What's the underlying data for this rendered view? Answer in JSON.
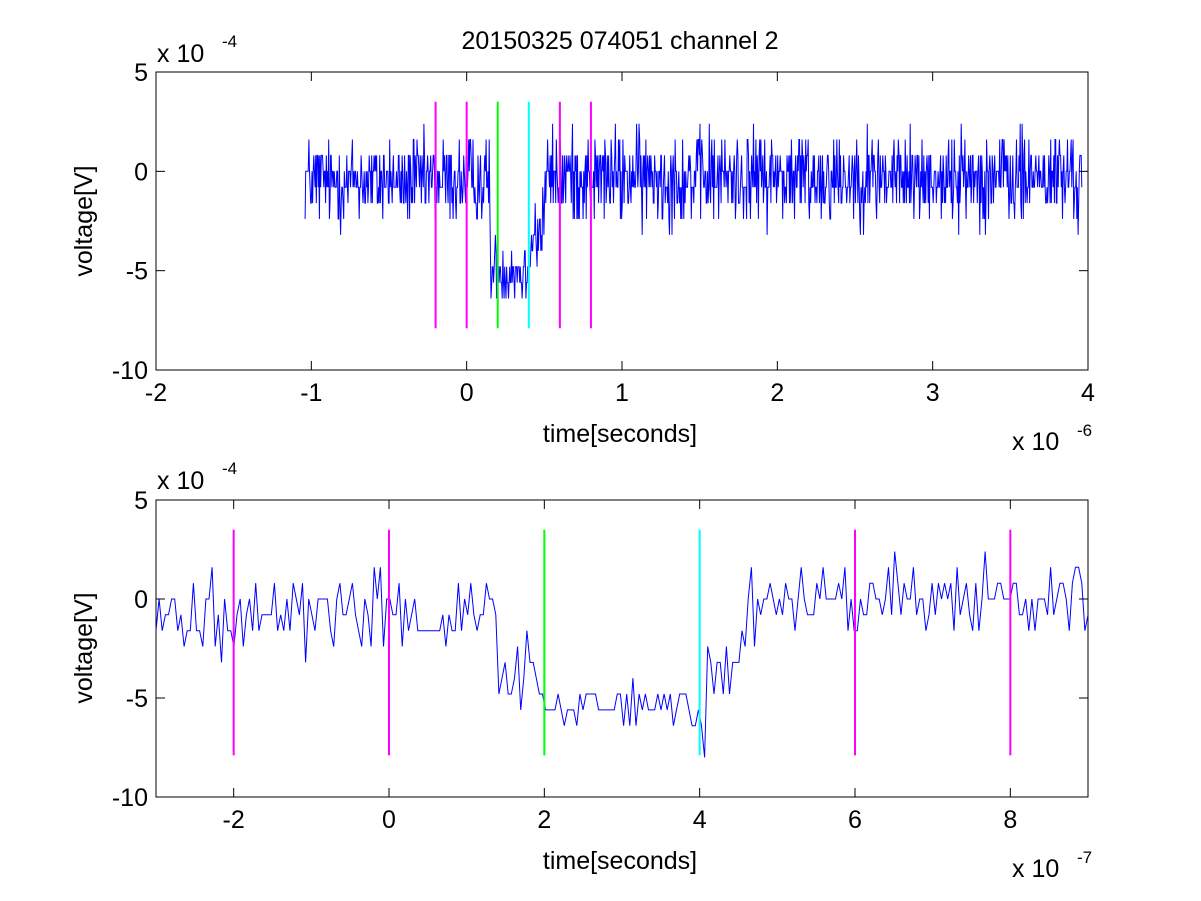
{
  "figure": {
    "title": "20150325 074051 channel 2"
  },
  "chart_data": [
    {
      "type": "line",
      "title": "20150325 074051 channel 2",
      "xlabel": "time[seconds]",
      "ylabel": "voltage[V]",
      "x_exponent_label": "x 10",
      "x_exponent": "-6",
      "y_exponent_label": "x 10",
      "y_exponent": "-4",
      "xlim": [
        -2,
        4
      ],
      "ylim": [
        -10,
        5
      ],
      "xticks": [
        "-2",
        "-1",
        "0",
        "1",
        "2",
        "3",
        "4"
      ],
      "yticks": [
        "5",
        "0",
        "-5",
        "-10"
      ],
      "grid": false,
      "signal_color": "#0000ff",
      "signal_samples": 1250,
      "signal_x_range": [
        -1.04,
        3.96
      ],
      "signal_features": [
        {
          "x_start": -1.04,
          "x_end": 0.15,
          "level": -0.5,
          "noise": 1.6
        },
        {
          "x_start": 0.15,
          "x_end": 0.4,
          "level": -5.0,
          "noise": 1.2
        },
        {
          "x_start": 0.4,
          "x_end": 0.5,
          "level": -3.0,
          "noise": 1.8
        },
        {
          "x_start": 0.5,
          "x_end": 3.96,
          "level": -0.3,
          "noise": 1.8
        }
      ],
      "markers": [
        {
          "x": -0.2,
          "y_range": [
            -7.9,
            3.5
          ],
          "color": "#ff00ff"
        },
        {
          "x": 0.0,
          "y_range": [
            -7.9,
            3.5
          ],
          "color": "#ff00ff"
        },
        {
          "x": 0.2,
          "y_range": [
            -7.9,
            3.5
          ],
          "color": "#00ff00"
        },
        {
          "x": 0.4,
          "y_range": [
            -7.9,
            3.5
          ],
          "color": "#00ffff"
        },
        {
          "x": 0.6,
          "y_range": [
            -7.9,
            3.5
          ],
          "color": "#ff00ff"
        },
        {
          "x": 0.8,
          "y_range": [
            -7.9,
            3.5
          ],
          "color": "#ff00ff"
        }
      ]
    },
    {
      "type": "line",
      "title": "",
      "xlabel": "time[seconds]",
      "ylabel": "voltage[V]",
      "x_exponent_label": "x 10",
      "x_exponent": "-7",
      "y_exponent_label": "x 10",
      "y_exponent": "-4",
      "xlim": [
        -3,
        9
      ],
      "ylim": [
        -10,
        5
      ],
      "xticks": [
        "-2",
        "0",
        "2",
        "4",
        "6",
        "8"
      ],
      "yticks": [
        "5",
        "0",
        "-5",
        "-10"
      ],
      "grid": false,
      "signal_color": "#0000ff",
      "signal_samples": 300,
      "signal_x_range": [
        -3,
        9
      ],
      "signal_features": [
        {
          "x_start": -3,
          "x_end": 1.4,
          "level": -0.8,
          "noise": 1.6
        },
        {
          "x_start": 1.4,
          "x_end": 2.0,
          "level": -3.8,
          "noise": 1.4
        },
        {
          "x_start": 2.0,
          "x_end": 3.8,
          "level": -5.3,
          "noise": 0.9
        },
        {
          "x_start": 3.8,
          "x_end": 4.1,
          "level": -6.3,
          "noise": 1.2
        },
        {
          "x_start": 4.1,
          "x_end": 4.6,
          "level": -3.0,
          "noise": 1.5
        },
        {
          "x_start": 4.6,
          "x_end": 9.0,
          "level": 0.0,
          "noise": 1.6
        }
      ],
      "markers": [
        {
          "x": -2,
          "y_range": [
            -7.9,
            3.5
          ],
          "color": "#ff00ff"
        },
        {
          "x": 0,
          "y_range": [
            -7.9,
            3.5
          ],
          "color": "#ff00ff"
        },
        {
          "x": 2,
          "y_range": [
            -7.9,
            3.5
          ],
          "color": "#00ff00"
        },
        {
          "x": 4,
          "y_range": [
            -7.9,
            3.5
          ],
          "color": "#00ffff"
        },
        {
          "x": 6,
          "y_range": [
            -7.9,
            3.5
          ],
          "color": "#ff00ff"
        },
        {
          "x": 8,
          "y_range": [
            -7.9,
            3.5
          ],
          "color": "#ff00ff"
        }
      ]
    }
  ]
}
